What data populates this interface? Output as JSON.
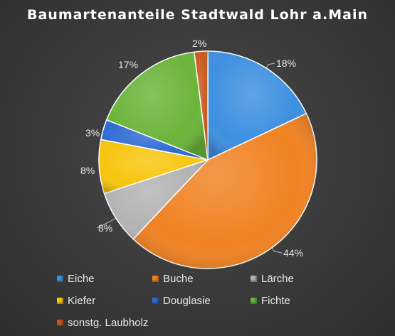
{
  "chart_data": {
    "type": "pie",
    "title": "Baumartenanteile Stadtwald Lohr a.Main",
    "slices": [
      {
        "name": "Eiche",
        "value": 18,
        "label": "18%",
        "color": "#3d8fe0"
      },
      {
        "name": "Buche",
        "value": 44,
        "label": "44%",
        "color": "#f08222"
      },
      {
        "name": "Lärche",
        "value": 8,
        "label": "8%",
        "color": "#b3b3b3"
      },
      {
        "name": "Kiefer",
        "value": 8,
        "label": "8%",
        "color": "#f7c50e"
      },
      {
        "name": "Douglasie",
        "value": 3,
        "label": "3%",
        "color": "#2f6bd3"
      },
      {
        "name": "Fichte",
        "value": 17,
        "label": "17%",
        "color": "#6bb43a"
      },
      {
        "name": "sonstg. Laubholz",
        "value": 2,
        "label": "2%",
        "color": "#c9581b"
      }
    ],
    "legend_position": "bottom"
  }
}
